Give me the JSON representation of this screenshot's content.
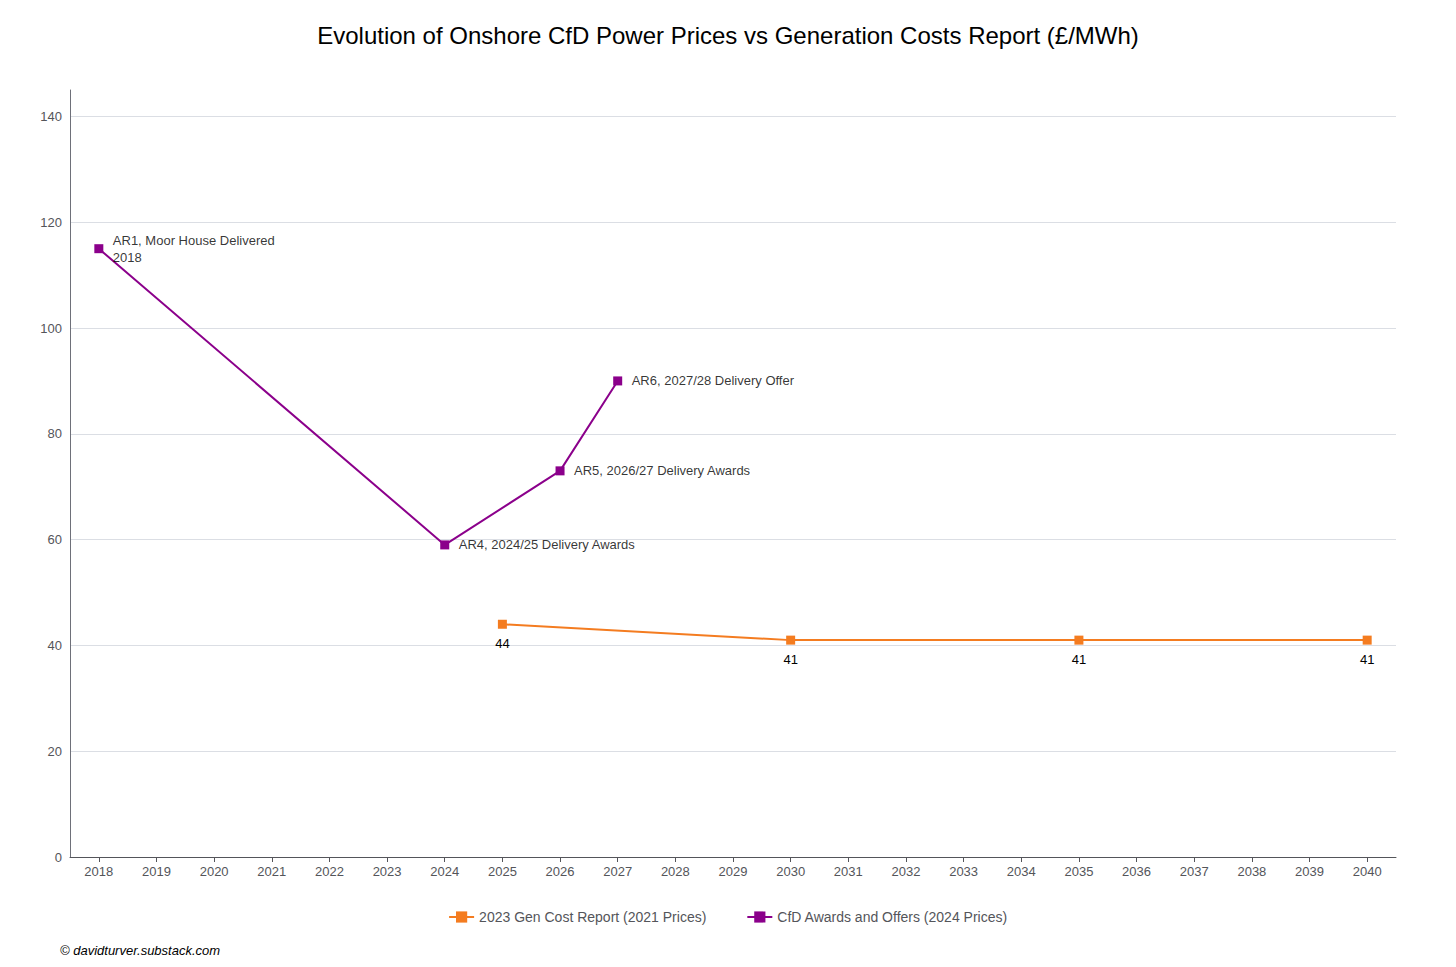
{
  "chart_data": {
    "type": "line",
    "title": "Evolution of Onshore CfD Power Prices vs Generation Costs Report (£/MWh)",
    "series": [
      {
        "name": "2023 Gen Cost Report (2021 Prices)",
        "color": "#f47c20",
        "marker": "square",
        "line_style": "solid",
        "x": [
          2025,
          2030,
          2035,
          2040
        ],
        "values": [
          44,
          41,
          41,
          41
        ],
        "data_labels": true
      },
      {
        "name": "CfD Awards and Offers (2024 Prices)",
        "color": "#8b008b",
        "marker": "square",
        "line_style": "solid",
        "x": [
          2018,
          2024,
          2026,
          2027
        ],
        "values": [
          115,
          59,
          73,
          90
        ]
      }
    ],
    "annotations": [
      {
        "x": 2018,
        "y": 115,
        "text": "AR1, Moor House Delivered\n2018"
      },
      {
        "x": 2024,
        "y": 59,
        "text": "AR4, 2024/25 Delivery Awards"
      },
      {
        "x": 2026,
        "y": 73,
        "text": "AR5, 2026/27 Delivery Awards"
      },
      {
        "x": 2027,
        "y": 90,
        "text": "AR6, 2027/28 Delivery Offer"
      },
      {
        "text": "© davidturver.substack.com"
      }
    ],
    "xlim": [
      2017.5,
      2040.5
    ],
    "xticks": [
      2018,
      2019,
      2020,
      2021,
      2022,
      2023,
      2024,
      2025,
      2026,
      2027,
      2028,
      2029,
      2030,
      2031,
      2032,
      2033,
      2034,
      2035,
      2036,
      2037,
      2038,
      2039,
      2040
    ],
    "ylim": [
      0,
      145
    ],
    "yticks": [
      0,
      20,
      40,
      60,
      80,
      100,
      120,
      140
    ],
    "grid": true,
    "legend": "bottom"
  }
}
